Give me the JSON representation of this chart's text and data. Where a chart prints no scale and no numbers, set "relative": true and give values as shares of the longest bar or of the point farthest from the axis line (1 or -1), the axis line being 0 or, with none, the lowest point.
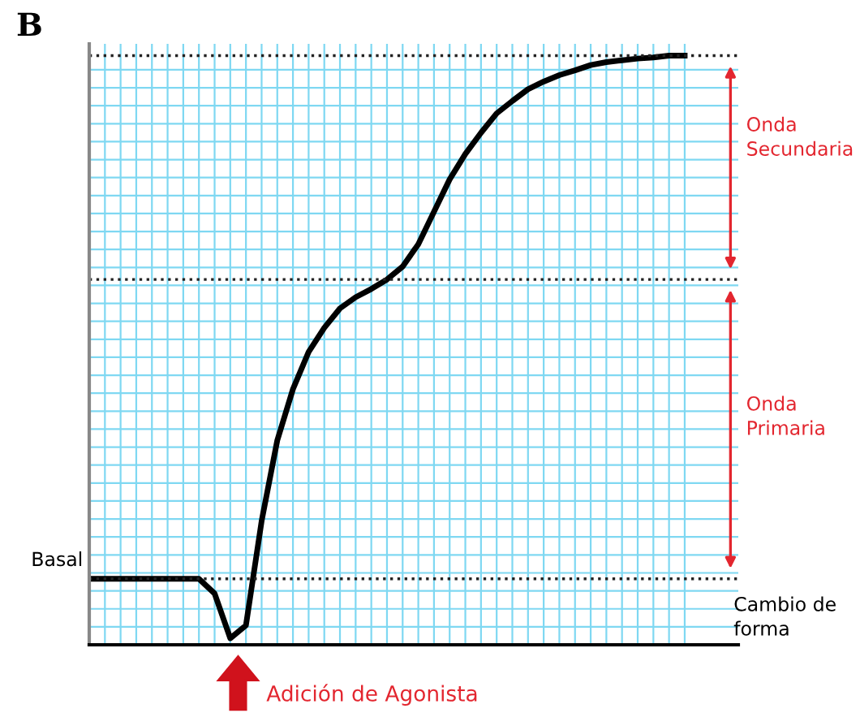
{
  "chart_data": {
    "type": "line",
    "title": "B",
    "relative": true,
    "grid": true,
    "tick_labels": false,
    "marker": "none",
    "line_style": "solid",
    "categories": [
      null,
      null,
      null,
      null,
      null,
      null,
      null,
      null,
      null,
      null,
      null,
      null,
      null,
      null,
      null,
      null,
      null,
      null,
      null,
      null,
      null,
      null,
      null,
      null,
      null,
      null,
      null,
      null,
      null,
      null,
      null,
      null,
      null,
      null,
      null,
      null,
      null,
      null,
      null
    ],
    "series": [
      {
        "color": "#000000",
        "values": [
          0.112,
          0.112,
          0.112,
          0.112,
          0.112,
          0.112,
          0.112,
          0.112,
          0.087,
          0.011,
          0.033,
          0.21,
          0.347,
          0.434,
          0.497,
          0.538,
          0.571,
          0.59,
          0.604,
          0.62,
          0.642,
          0.68,
          0.735,
          0.79,
          0.833,
          0.869,
          0.902,
          0.923,
          0.943,
          0.956,
          0.967,
          0.975,
          0.984,
          0.989,
          0.992,
          0.995,
          0.997,
          1.0,
          1.0
        ]
      }
    ],
    "ref_lines": [
      {
        "axis": "y",
        "value": 0.112,
        "color": "#222222",
        "line_style": "dotted"
      },
      {
        "axis": "y",
        "value": 0.62,
        "color": "#222222",
        "line_style": "dotted"
      },
      {
        "axis": "y",
        "value": 1.0,
        "color": "#222222",
        "line_style": "dotted"
      }
    ],
    "annotations": [
      "Basal",
      "Cambio de forma",
      "Onda Secundaria",
      "Onda Primaria",
      "Adición de Agonista"
    ]
  }
}
